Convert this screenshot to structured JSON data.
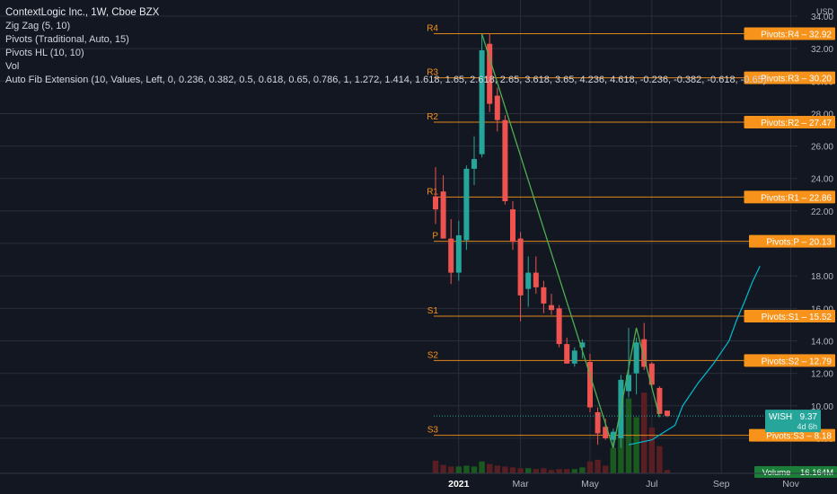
{
  "legend": {
    "title": "ContextLogic Inc., 1W, Cboe BZX",
    "indicators": [
      "Zig Zag (5, 10)",
      "Pivots (Traditional, Auto, 15)",
      "Pivots HL (10, 10)",
      "Vol",
      "Auto Fib Extension (10, Values, Left, 0, 0.236, 0.382, 0.5, 0.618, 0.65, 0.786, 1, 1.272, 1.414, 1.618, 1.65, 2.618, 2.65, 3.618, 3.65, 4.236, 4.618, -0.236, -0.382, -0.618, -0.65)"
    ]
  },
  "colors": {
    "background": "#131722",
    "grid": "#2a2e39",
    "up": "#26a69a",
    "down": "#ef5350",
    "vol_up": "#1b5e20",
    "vol_down": "#5d1f22",
    "zigzag": "#4caf50",
    "pivot": "#f7931a",
    "fib_curve": "#00bcd4",
    "price_badge": "#26a69a",
    "volume_badge": "#1b7f3a"
  },
  "chart_data": {
    "type": "candlestick",
    "symbol": "WISH",
    "interval": "1W",
    "ylim": [
      7.0,
      34.0
    ],
    "y_ticks": [
      "34.00",
      "32.00",
      "30.00",
      "28.00",
      "26.00",
      "24.00",
      "22.00",
      "20.00",
      "18.00",
      "16.00",
      "14.00",
      "12.00",
      "10.00",
      "8.00"
    ],
    "y_unit_label": "USD",
    "x_labels": [
      {
        "label": "2021",
        "week": 3
      },
      {
        "label": "Mar",
        "week": 11
      },
      {
        "label": "May",
        "week": 20
      },
      {
        "label": "Jul",
        "week": 28
      },
      {
        "label": "Sep",
        "week": 37
      },
      {
        "label": "Nov",
        "week": 46
      }
    ],
    "candles": [
      {
        "o": 22.9,
        "h": 24.7,
        "l": 21.2,
        "c": 22.1,
        "v": 1.5
      },
      {
        "o": 23.2,
        "h": 24.2,
        "l": 20.3,
        "c": 20.3,
        "v": 1.0
      },
      {
        "o": 20.3,
        "h": 21.5,
        "l": 17.5,
        "c": 18.2,
        "v": 0.8
      },
      {
        "o": 18.2,
        "h": 21.4,
        "l": 17.7,
        "c": 20.5,
        "v": 0.8
      },
      {
        "o": 20.2,
        "h": 24.8,
        "l": 19.6,
        "c": 24.6,
        "v": 0.9
      },
      {
        "o": 24.6,
        "h": 26.6,
        "l": 23.6,
        "c": 25.2,
        "v": 0.8
      },
      {
        "o": 25.5,
        "h": 32.9,
        "l": 25.3,
        "c": 31.9,
        "v": 1.4
      },
      {
        "o": 32.3,
        "h": 32.9,
        "l": 28.1,
        "c": 28.6,
        "v": 1.1
      },
      {
        "o": 29.1,
        "h": 29.6,
        "l": 26.9,
        "c": 27.6,
        "v": 0.9
      },
      {
        "o": 27.6,
        "h": 27.9,
        "l": 22.4,
        "c": 22.6,
        "v": 0.8
      },
      {
        "o": 22.1,
        "h": 22.6,
        "l": 19.6,
        "c": 20.1,
        "v": 0.7
      },
      {
        "o": 20.3,
        "h": 20.7,
        "l": 15.2,
        "c": 16.8,
        "v": 0.6
      },
      {
        "o": 17.2,
        "h": 19.2,
        "l": 16.1,
        "c": 18.2,
        "v": 0.6
      },
      {
        "o": 18.2,
        "h": 19.2,
        "l": 16.9,
        "c": 17.3,
        "v": 0.5
      },
      {
        "o": 17.3,
        "h": 17.7,
        "l": 15.7,
        "c": 16.3,
        "v": 0.6
      },
      {
        "o": 16.2,
        "h": 16.9,
        "l": 15.6,
        "c": 15.9,
        "v": 0.4
      },
      {
        "o": 16.0,
        "h": 16.2,
        "l": 13.6,
        "c": 13.8,
        "v": 0.5
      },
      {
        "o": 13.8,
        "h": 14.2,
        "l": 12.6,
        "c": 12.6,
        "v": 0.5
      },
      {
        "o": 12.6,
        "h": 13.6,
        "l": 12.4,
        "c": 13.4,
        "v": 0.5
      },
      {
        "o": 13.6,
        "h": 14.1,
        "l": 12.9,
        "c": 13.9,
        "v": 0.7
      },
      {
        "o": 12.7,
        "h": 13.2,
        "l": 9.6,
        "c": 9.9,
        "v": 1.4
      },
      {
        "o": 9.6,
        "h": 9.9,
        "l": 7.6,
        "c": 8.3,
        "v": 1.6
      },
      {
        "o": 8.7,
        "h": 9.2,
        "l": 7.9,
        "c": 8.0,
        "v": 0.9
      },
      {
        "o": 7.9,
        "h": 8.6,
        "l": 7.6,
        "c": 8.4,
        "v": 3.0
      },
      {
        "o": 8.0,
        "h": 11.9,
        "l": 7.4,
        "c": 11.6,
        "v": 6.3
      },
      {
        "o": 10.9,
        "h": 14.8,
        "l": 10.5,
        "c": 11.9,
        "v": 8.8
      },
      {
        "o": 12.0,
        "h": 14.2,
        "l": 10.7,
        "c": 13.9,
        "v": 6.6
      },
      {
        "o": 14.1,
        "h": 15.1,
        "l": 12.2,
        "c": 12.4,
        "v": 9.5
      },
      {
        "o": 12.6,
        "h": 12.7,
        "l": 11.1,
        "c": 11.3,
        "v": 5.4
      },
      {
        "o": 11.1,
        "h": 11.2,
        "l": 9.5,
        "c": 9.5,
        "v": 3.2
      },
      {
        "o": 9.7,
        "h": 9.7,
        "l": 9.3,
        "c": 9.37,
        "v": 0.4
      }
    ],
    "zigzag": [
      {
        "week": 6,
        "price": 32.9
      },
      {
        "week": 23,
        "price": 7.4
      },
      {
        "week": 26,
        "price": 14.8
      },
      {
        "week": 29,
        "price": 9.3
      }
    ],
    "fib_curve": [
      {
        "week": 25,
        "price": 7.6
      },
      {
        "week": 28,
        "price": 7.9
      },
      {
        "week": 31,
        "price": 8.8
      },
      {
        "week": 32,
        "price": 10.0
      },
      {
        "week": 34,
        "price": 11.4
      },
      {
        "week": 36,
        "price": 12.6
      },
      {
        "week": 38,
        "price": 14.0
      },
      {
        "week": 39,
        "price": 15.3
      },
      {
        "week": 40,
        "price": 16.4
      },
      {
        "week": 41,
        "price": 17.6
      },
      {
        "week": 42,
        "price": 18.6
      }
    ],
    "pivots": [
      {
        "label": "R4",
        "tag": "Pivots:R4 – 32.92",
        "value": 32.92
      },
      {
        "label": "R3",
        "tag": "Pivots:R3 – 30.20",
        "value": 30.2
      },
      {
        "label": "R2",
        "tag": "Pivots:R2 – 27.47",
        "value": 27.47
      },
      {
        "label": "R1",
        "tag": "Pivots:R1 – 22.86",
        "value": 22.86
      },
      {
        "label": "P",
        "tag": "Pivots:P – 20.13",
        "value": 20.13
      },
      {
        "label": "S1",
        "tag": "Pivots:S1 – 15.52",
        "value": 15.52
      },
      {
        "label": "S2",
        "tag": "Pivots:S2 – 12.79",
        "value": 12.79
      },
      {
        "label": "S3",
        "tag": "Pivots:S3 – 8.18",
        "value": 8.18
      }
    ],
    "last_price": {
      "symbol": "WISH",
      "value": "9.37",
      "countdown": "4d 6h",
      "price": 9.37
    },
    "volume_label": "Volume – 16.164M"
  }
}
